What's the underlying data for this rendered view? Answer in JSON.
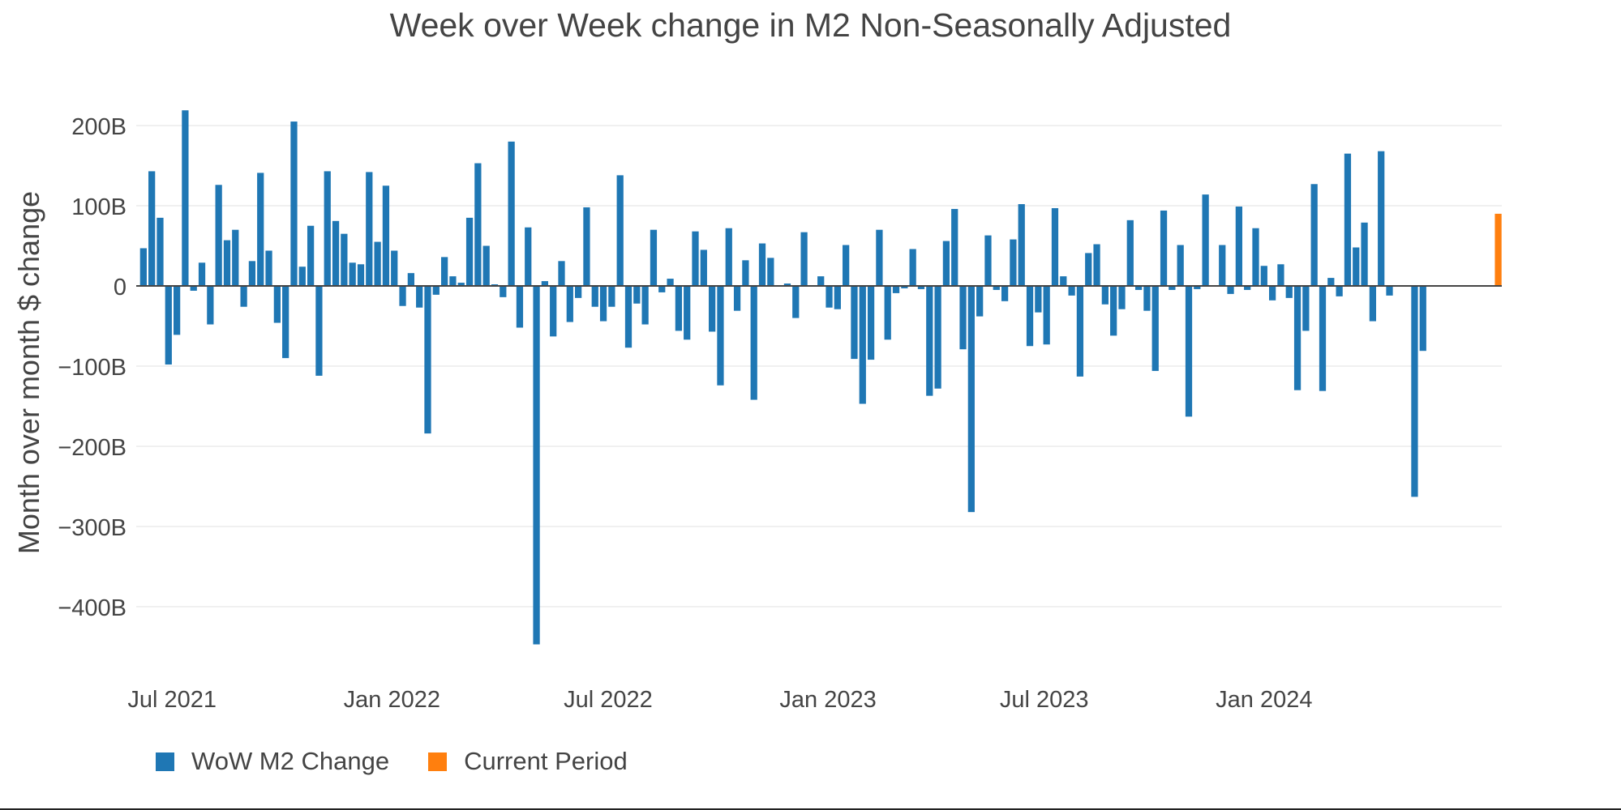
{
  "chart_data": {
    "type": "bar",
    "title": "Week over Week change in M2 Non-Seasonally Adjusted",
    "xlabel": "",
    "ylabel": "Month over month $ change",
    "ylim": [
      -450,
      235
    ],
    "y_unit_suffix": "B",
    "y_ticks": [
      200,
      100,
      0,
      -100,
      -200,
      -300,
      -400
    ],
    "y_tick_labels": [
      "200B",
      "100B",
      "0",
      "−100B",
      "−200B",
      "−300B",
      "−400B"
    ],
    "x_ticks": [
      "2021-07-01",
      "2022-01-01",
      "2022-07-01",
      "2023-01-01",
      "2023-07-01",
      "2024-01-01"
    ],
    "x_tick_labels": [
      "Jul 2021",
      "Jan 2022",
      "Jul 2022",
      "Jan 2023",
      "Jul 2023",
      "Jan 2024"
    ],
    "x_range": [
      "2021-06-01",
      "2024-07-18"
    ],
    "grid": "horizontal",
    "legend_position": "bottom-left",
    "series": [
      {
        "name": "WoW M2 Change",
        "color": "#1f77b4",
        "start_date": "2021-06-07",
        "step_days": 7,
        "values": [
          47,
          143,
          85,
          -98,
          -61,
          219,
          -6,
          29,
          -48,
          126,
          57,
          70,
          -26,
          31,
          141,
          44,
          -46,
          -90,
          205,
          24,
          75,
          -112,
          143,
          81,
          65,
          29,
          27,
          142,
          55,
          125,
          44,
          -25,
          16,
          -27,
          -184,
          -11,
          36,
          12,
          4,
          85,
          153,
          50,
          2,
          -14,
          180,
          -52,
          73,
          -447,
          6,
          -63,
          31,
          -45,
          -15,
          98,
          -26,
          -44,
          -26,
          138,
          -77,
          -22,
          -48,
          70,
          -8,
          9,
          -56,
          -67,
          68,
          45,
          -57,
          -124,
          72,
          -31,
          32,
          -142,
          53,
          35,
          0,
          3,
          -40,
          67,
          0,
          12,
          -27,
          -29,
          51,
          -91,
          -147,
          -92,
          70,
          -67,
          -9,
          -3,
          46,
          -4,
          -137,
          -128,
          56,
          96,
          -79,
          -282,
          -38,
          63,
          -5,
          -19,
          58,
          102,
          -75,
          -33,
          -73,
          97,
          12,
          -12,
          -113,
          41,
          52,
          -23,
          -62,
          -29,
          82,
          -5,
          -31,
          -106,
          94,
          -5,
          51,
          -163,
          -4,
          114,
          0,
          51,
          -10,
          99,
          -5,
          72,
          25,
          -18,
          27,
          -15,
          -130,
          -56,
          127,
          -131,
          10,
          -13,
          165,
          48,
          79,
          -44,
          168,
          -12,
          0,
          0,
          -263,
          -81
        ]
      },
      {
        "name": "Current Period",
        "color": "#ff7f0e",
        "dates": [
          "2024-07-15"
        ],
        "values": [
          90
        ]
      }
    ]
  }
}
